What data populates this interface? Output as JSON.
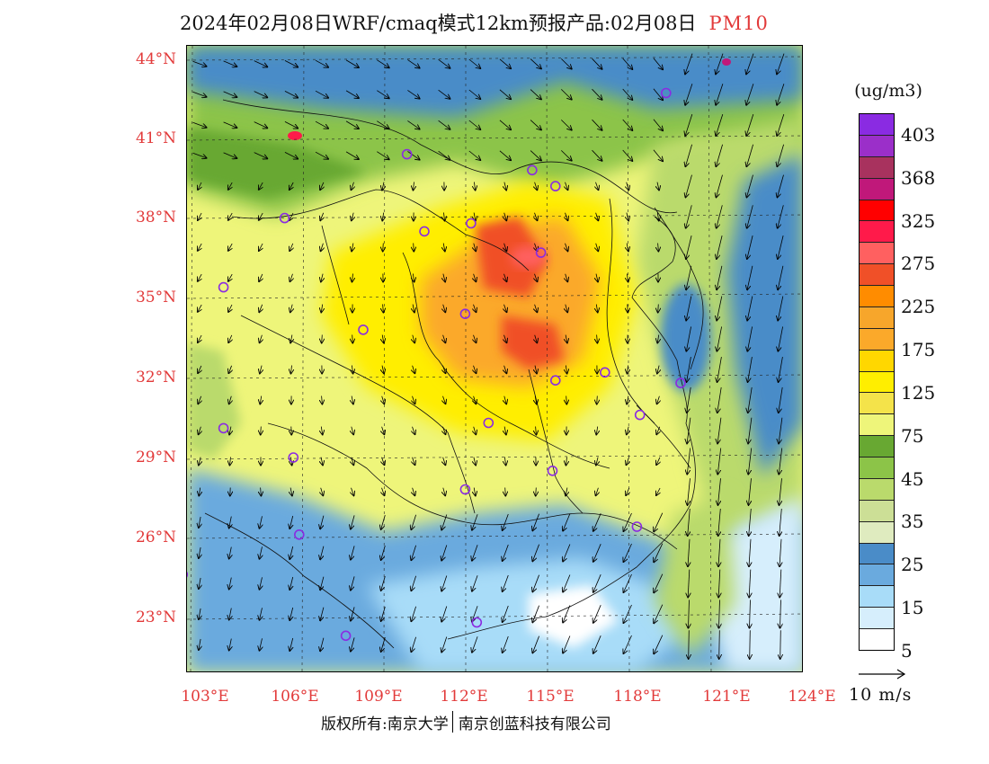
{
  "title": {
    "main": "2024年02月08日WRF/cmaq模式12km预报产品:02月08日",
    "variable": "PM10"
  },
  "axes": {
    "lat_labels": [
      "44°N",
      "41°N",
      "38°N",
      "35°N",
      "32°N",
      "29°N",
      "26°N",
      "23°N"
    ],
    "lon_labels": [
      "103°E",
      "106°E",
      "109°E",
      "112°E",
      "115°E",
      "118°E",
      "121°E",
      "124°E"
    ]
  },
  "legend": {
    "unit": "(ug/m3)",
    "labels": [
      "403",
      "368",
      "325",
      "275",
      "225",
      "175",
      "125",
      "75",
      "45",
      "35",
      "25",
      "15",
      "5"
    ],
    "colors": [
      "#8a2be2",
      "#9b2fc9",
      "#a8325e",
      "#c0187a",
      "#ff0000",
      "#ff1a4a",
      "#ff6060",
      "#f05028",
      "#ff8c00",
      "#f7a62b",
      "#fba92a",
      "#ffd700",
      "#ffee00",
      "#f4e34a",
      "#eef57a",
      "#68a832",
      "#8cc448",
      "#bada6c",
      "#ccdf96",
      "#dfebbf",
      "#4a8cc8",
      "#6aaade",
      "#a8dcf8",
      "#d6eefc",
      "#ffffff"
    ]
  },
  "wind_reference": {
    "label": "10 m/s"
  },
  "footer": {
    "left": "版权所有:南京大学",
    "right": "南京创蓝科技有限公司"
  },
  "stations": [
    {
      "lon": 119.3,
      "lat": 43.2
    },
    {
      "lon": 110.4,
      "lat": 40.9
    },
    {
      "lon": 114.7,
      "lat": 40.3
    },
    {
      "lon": 115.5,
      "lat": 39.7
    },
    {
      "lon": 106.2,
      "lat": 38.5
    },
    {
      "lon": 111.0,
      "lat": 38.0
    },
    {
      "lon": 112.6,
      "lat": 38.3
    },
    {
      "lon": 115.0,
      "lat": 37.2
    },
    {
      "lon": 104.1,
      "lat": 35.9
    },
    {
      "lon": 112.4,
      "lat": 34.9
    },
    {
      "lon": 108.9,
      "lat": 34.3
    },
    {
      "lon": 117.2,
      "lat": 32.7
    },
    {
      "lon": 115.5,
      "lat": 32.4
    },
    {
      "lon": 119.8,
      "lat": 32.3
    },
    {
      "lon": 104.1,
      "lat": 30.6
    },
    {
      "lon": 118.4,
      "lat": 31.1
    },
    {
      "lon": 113.2,
      "lat": 30.8
    },
    {
      "lon": 106.5,
      "lat": 29.5
    },
    {
      "lon": 115.4,
      "lat": 29.0
    },
    {
      "lon": 112.4,
      "lat": 28.3
    },
    {
      "lon": 118.3,
      "lat": 26.9
    },
    {
      "lon": 106.7,
      "lat": 26.6
    },
    {
      "lon": 102.7,
      "lat": 25.1
    },
    {
      "lon": 112.8,
      "lat": 23.3
    },
    {
      "lon": 108.3,
      "lat": 22.8
    }
  ]
}
